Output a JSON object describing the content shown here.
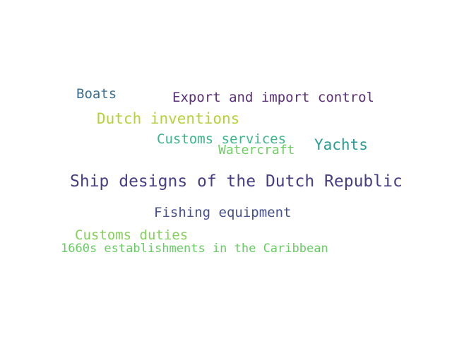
{
  "cloud": {
    "words": [
      {
        "text": "Boats",
        "color": "#3b6f91"
      },
      {
        "text": "Export and import control",
        "color": "#5a2d78"
      },
      {
        "text": "Dutch inventions",
        "color": "#b5d13a"
      },
      {
        "text": "Customs services",
        "color": "#3db58a"
      },
      {
        "text": "Yachts",
        "color": "#2a9a95"
      },
      {
        "text": "Watercraft",
        "color": "#6fcf62"
      },
      {
        "text": "Ship designs of the Dutch Republic",
        "color": "#473f86"
      },
      {
        "text": "Fishing equipment",
        "color": "#46508c"
      },
      {
        "text": "Customs duties",
        "color": "#83d15a"
      },
      {
        "text": "1660s establishments in the Caribbean",
        "color": "#68cc64"
      }
    ]
  }
}
